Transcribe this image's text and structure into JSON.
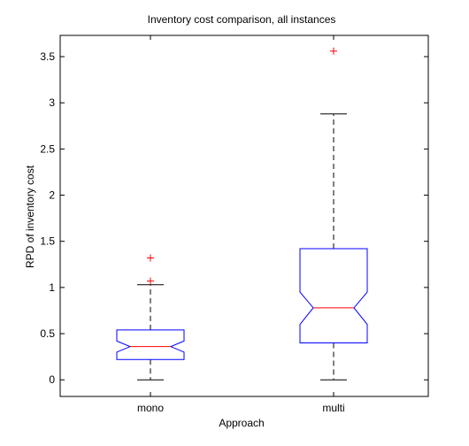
{
  "chart_data": {
    "type": "boxplot",
    "title": "Inventory cost comparison, all instances",
    "xlabel": "Approach",
    "ylabel": "RPD of inventory cost",
    "ylim": [
      -0.18,
      3.73
    ],
    "yticks": [
      0,
      0.5,
      1,
      1.5,
      2,
      2.5,
      3,
      3.5
    ],
    "ytick_labels": [
      "0",
      "0.5",
      "1",
      "1.5",
      "2",
      "2.5",
      "3",
      "3.5"
    ],
    "notched": true,
    "categories": [
      "mono",
      "multi"
    ],
    "boxes": [
      {
        "category": "mono",
        "whisker_low": 0.0,
        "q1": 0.22,
        "notch_low": 0.3,
        "median": 0.36,
        "notch_high": 0.42,
        "q3": 0.54,
        "whisker_high": 1.03,
        "outliers": [
          1.07,
          1.32
        ]
      },
      {
        "category": "multi",
        "whisker_low": 0.0,
        "q1": 0.4,
        "notch_low": 0.6,
        "median": 0.78,
        "notch_high": 0.95,
        "q3": 1.42,
        "whisker_high": 2.88,
        "outliers": [
          3.56
        ]
      }
    ],
    "colors": {
      "box": "#0000ff",
      "median": "#ff0000",
      "whisker": "#000000",
      "outlier": "#ff0000"
    }
  }
}
